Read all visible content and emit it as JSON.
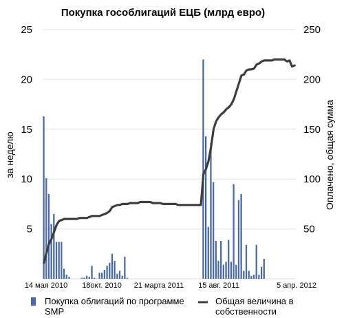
{
  "chart_data": {
    "type": "bar",
    "title": "Покупка гособлигаций ЕЦБ (млрд евро)",
    "ylabel_left": "за неделю",
    "ylabel_right": "Оплачено, общая сумма",
    "ylim_left": [
      0,
      25
    ],
    "ylim_right": [
      0,
      250
    ],
    "yticks_left": [
      5,
      10,
      15,
      20,
      25
    ],
    "yticks_right": [
      50,
      100,
      150,
      200,
      250
    ],
    "x_tick_labels": [
      "14 мая 2010",
      "18окт. 2010",
      "21 марта 2011",
      "15 авг. 2011",
      "5 апр. 2012"
    ],
    "grid": true,
    "legend_position": "bottom",
    "weeks": 100,
    "series": [
      {
        "name": "Покупка облигаций по программе SMP",
        "kind": "bar",
        "axis": "left",
        "color": "#4a6aa5",
        "values": [
          16.3,
          10.1,
          8.5,
          5.5,
          6.5,
          3.7,
          3.7,
          3.7,
          1.0,
          0.4,
          0.2,
          0.0,
          0.0,
          0.0,
          0.0,
          0.1,
          0.1,
          0.3,
          0.2,
          1.3,
          0.1,
          0.0,
          0.6,
          0.6,
          0.9,
          1.3,
          1.6,
          2.5,
          1.8,
          0.5,
          0.8,
          0.3,
          2.2,
          0.1,
          0.0,
          0.0,
          0.0,
          0.0,
          0.0,
          0.0,
          0.0,
          0.0,
          0.0,
          0.0,
          0.0,
          0.0,
          0.0,
          0.0,
          0.0,
          0.0,
          0.0,
          0.0,
          0.0,
          0.0,
          0.0,
          0.0,
          0.0,
          0.0,
          0.0,
          0.0,
          0.0,
          0.0,
          0.0,
          22.0,
          14.3,
          5.2,
          13.6,
          9.7,
          3.8,
          1.8,
          3.8,
          1.4,
          1.7,
          3.9,
          1.7,
          9.5,
          1.4,
          7.9,
          8.5,
          0.8,
          3.4,
          0.8,
          0.3,
          0.4,
          3.4,
          0.4,
          1.2,
          2.0,
          0.0,
          0.0,
          0.0,
          0.0,
          0.0,
          0.0,
          0.0,
          0.0,
          0.0,
          0.0,
          0.0,
          0.0
        ]
      },
      {
        "name": "Общая величина в собственности",
        "kind": "line",
        "axis": "right",
        "color": "#3d3d3d",
        "values": [
          16,
          26,
          35,
          40,
          47,
          54,
          58,
          59,
          60,
          60,
          60,
          60,
          60,
          60,
          61,
          61,
          61,
          61,
          62,
          63,
          63,
          63,
          63,
          64,
          65,
          66,
          68,
          72,
          73,
          74,
          74,
          75,
          75,
          75,
          76,
          76,
          76,
          76,
          77,
          77,
          77,
          77,
          77,
          76,
          76,
          76,
          76,
          75,
          75,
          75,
          75,
          75,
          75,
          74,
          74,
          74,
          74,
          74,
          74,
          74,
          74,
          74,
          74,
          105,
          110,
          118,
          132,
          150,
          158,
          162,
          165,
          167,
          170,
          172,
          175,
          180,
          188,
          196,
          204,
          205,
          209,
          210,
          210,
          211,
          215,
          216,
          218,
          219,
          219,
          219,
          219,
          220,
          220,
          220,
          220,
          220,
          218,
          219,
          213,
          214
        ]
      }
    ]
  }
}
